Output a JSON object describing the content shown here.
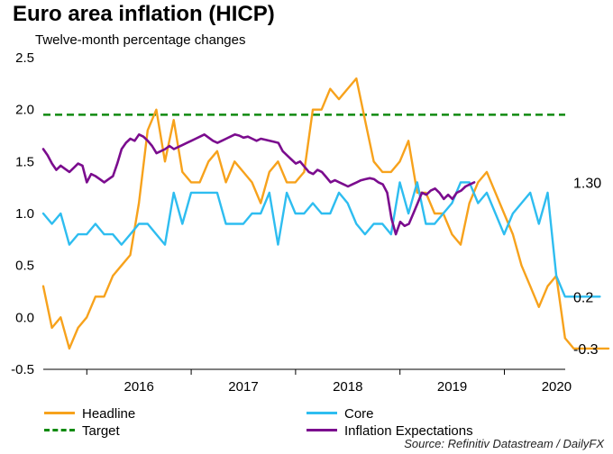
{
  "chart_data": {
    "type": "line",
    "title": "Euro area inflation (HICP)",
    "subtitle": "Twelve-month percentage changes",
    "ylim": [
      -0.5,
      2.5
    ],
    "yticks": [
      "2.5",
      "2.0",
      "1.5",
      "1.0",
      "0.5",
      "0.0",
      "-0.5"
    ],
    "xticks": [
      "2016",
      "2017",
      "2018",
      "2019",
      "2020"
    ],
    "grid": false,
    "legend_position": "bottom",
    "end_labels": [
      "1.30",
      "0.2",
      "-0.3"
    ],
    "source": "Source: Refinitiv Datastream / DailyFX",
    "target": {
      "name": "Target",
      "value": 1.95,
      "color": "#108a10"
    },
    "series": [
      {
        "name": "Headline",
        "color": "#f7a21c",
        "start": 2015.583,
        "step": 0.0833,
        "values": [
          0.3,
          -0.1,
          0.0,
          -0.3,
          -0.1,
          0.0,
          0.2,
          0.2,
          0.4,
          0.5,
          0.6,
          1.1,
          1.8,
          2.0,
          1.5,
          1.9,
          1.4,
          1.3,
          1.3,
          1.5,
          1.6,
          1.3,
          1.5,
          1.4,
          1.3,
          1.1,
          1.4,
          1.5,
          1.3,
          1.3,
          1.4,
          2.0,
          2.0,
          2.2,
          2.1,
          2.2,
          2.3,
          1.9,
          1.5,
          1.4,
          1.4,
          1.5,
          1.7,
          1.2,
          1.2,
          1.0,
          1.0,
          0.8,
          0.7,
          1.1,
          1.3,
          1.4,
          1.2,
          1.0,
          0.8,
          0.5,
          0.3,
          0.1,
          0.3,
          0.4,
          -0.2,
          -0.3,
          -0.3,
          -0.3,
          -0.3,
          -0.3
        ],
        "end_label": "-0.3"
      },
      {
        "name": "Core",
        "color": "#2ebdf0",
        "start": 2015.583,
        "step": 0.0833,
        "values": [
          1.0,
          0.9,
          1.0,
          0.7,
          0.8,
          0.8,
          0.9,
          0.8,
          0.8,
          0.7,
          0.8,
          0.9,
          0.9,
          0.8,
          0.7,
          1.2,
          0.9,
          1.2,
          1.2,
          1.2,
          1.2,
          0.9,
          0.9,
          0.9,
          1.0,
          1.0,
          1.2,
          0.7,
          1.2,
          1.0,
          1.0,
          1.1,
          1.0,
          1.0,
          1.2,
          1.1,
          0.9,
          0.8,
          0.9,
          0.9,
          0.8,
          1.3,
          1.0,
          1.3,
          0.9,
          0.9,
          1.0,
          1.1,
          1.3,
          1.3,
          1.1,
          1.2,
          1.0,
          0.8,
          1.0,
          1.1,
          1.2,
          0.9,
          1.2,
          0.4,
          0.2,
          0.2,
          0.2,
          0.2,
          0.2
        ],
        "end_label": "0.2"
      },
      {
        "name": "Inflation Expectations",
        "color": "#7b0c8e",
        "start": 2015.583,
        "step": 0.0417,
        "values": [
          1.62,
          1.56,
          1.48,
          1.42,
          1.46,
          1.43,
          1.4,
          1.44,
          1.48,
          1.46,
          1.3,
          1.38,
          1.36,
          1.33,
          1.3,
          1.33,
          1.36,
          1.48,
          1.62,
          1.68,
          1.72,
          1.7,
          1.76,
          1.74,
          1.7,
          1.65,
          1.58,
          1.6,
          1.62,
          1.65,
          1.62,
          1.64,
          1.66,
          1.68,
          1.7,
          1.72,
          1.74,
          1.76,
          1.73,
          1.7,
          1.68,
          1.7,
          1.72,
          1.74,
          1.76,
          1.75,
          1.73,
          1.74,
          1.72,
          1.7,
          1.72,
          1.71,
          1.7,
          1.69,
          1.68,
          1.6,
          1.56,
          1.52,
          1.48,
          1.5,
          1.45,
          1.4,
          1.38,
          1.42,
          1.4,
          1.35,
          1.3,
          1.32,
          1.3,
          1.28,
          1.26,
          1.28,
          1.3,
          1.32,
          1.33,
          1.34,
          1.33,
          1.3,
          1.28,
          1.2,
          0.95,
          0.8,
          0.92,
          0.88,
          0.9,
          1.0,
          1.1,
          1.2,
          1.18,
          1.22,
          1.24,
          1.2,
          1.14,
          1.18,
          1.14,
          1.2,
          1.22,
          1.26,
          1.28,
          1.3
        ],
        "end_label": "1.30"
      }
    ]
  }
}
